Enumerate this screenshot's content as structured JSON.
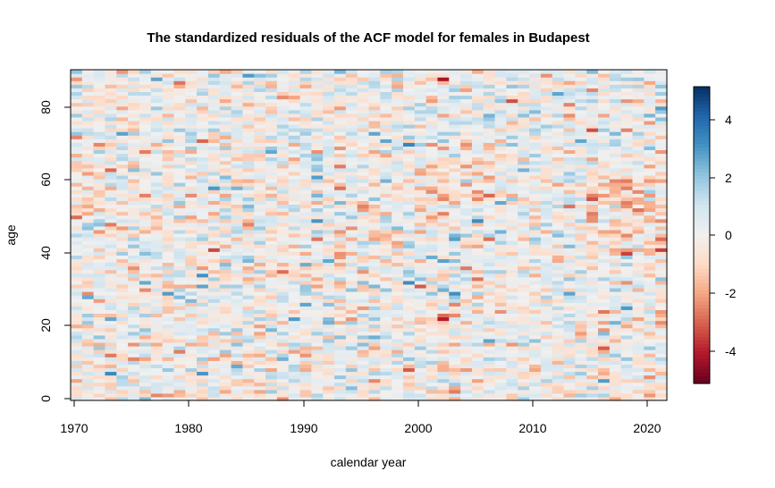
{
  "chart_data": {
    "type": "heatmap",
    "title": "The standardized residuals of the ACF model for females in Budapest",
    "xlabel": "calendar year",
    "ylabel": "age",
    "x_range": [
      1970,
      2021
    ],
    "y_range": [
      0,
      90
    ],
    "x_ticks": [
      "1970",
      "1980",
      "1990",
      "2000",
      "2010",
      "2020"
    ],
    "y_ticks": [
      "0",
      "20",
      "40",
      "60",
      "80"
    ],
    "color_scale": {
      "range": [
        -5.2,
        5.2
      ],
      "ticks": [
        "-4",
        "-2",
        "0",
        "2",
        "4"
      ],
      "colors": [
        "#67001F",
        "#B2182B",
        "#D6604D",
        "#F4A582",
        "#FDDBC7",
        "#F0F0F0",
        "#D1E5F0",
        "#92C5DE",
        "#4393C3",
        "#2166AC",
        "#053061"
      ]
    },
    "grid": false,
    "legend_placement": "right"
  }
}
